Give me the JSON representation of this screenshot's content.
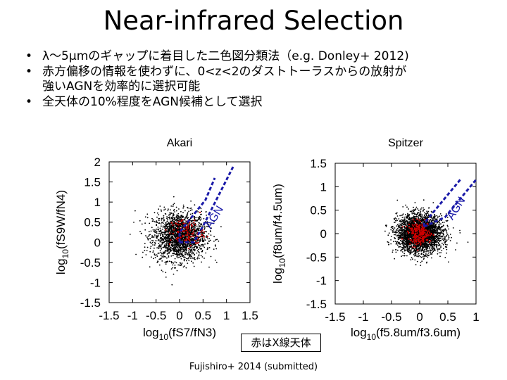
{
  "title": "Near-infrared Selection",
  "bullets": [
    {
      "text": "λ〜5µmのギャップに着目した二色図分類法（e.g. Donley+ 2012)"
    },
    {
      "text": "赤方偏移の情報を使わずに、0<z<2のダストトーラスからの放射が",
      "cont": "強いAGNを効率的に選択可能"
    },
    {
      "text": "全天体の10%程度をAGN候補として選択"
    }
  ],
  "caption": "赤はX線天体",
  "citation": "Fujishiro+ 2014 (submitted)",
  "colors": {
    "agn_line": "#1a1aa8",
    "xray": "#cc0000",
    "points": "#000000"
  },
  "chart_data": [
    {
      "type": "scatter",
      "title": "Akari",
      "xlabel": "log10(fS7/fN3)",
      "ylabel": "log10(fS9W/fN4)",
      "xlim": [
        -1.5,
        1.5
      ],
      "ylim": [
        -1.5,
        2
      ],
      "xticks": [
        "-1.5",
        "-1",
        "-0.5",
        "0",
        "0.5",
        "1",
        "1.5"
      ],
      "yticks": [
        "-1.5",
        "-1",
        "-0.5",
        "0",
        "0.5",
        "1",
        "1.5",
        "2"
      ],
      "region_label": "AGN",
      "region_boundary": [
        [
          0,
          0
        ],
        [
          0.3,
          0
        ],
        [
          0.5,
          0.4
        ],
        [
          1.15,
          1.9
        ]
      ],
      "region_boundary2": [
        [
          0,
          0
        ],
        [
          0,
          0.25
        ],
        [
          0.55,
          1.05
        ],
        [
          0.75,
          1.6
        ]
      ],
      "series": [
        {
          "center": [
            0,
            0.15
          ],
          "spread": [
            0.28,
            0.3
          ],
          "count": 2000
        },
        {
          "center": [
            0.15,
            0.25
          ],
          "spread": [
            0.18,
            0.18
          ],
          "count": 110
        }
      ]
    },
    {
      "type": "scatter",
      "title": "Spitzer",
      "xlabel": "log10(f5.8um/f3.6um)",
      "ylabel": "log10(f8um/f4.5um)",
      "xlim": [
        -1.5,
        1
      ],
      "ylim": [
        -1.5,
        1.5
      ],
      "xticks": [
        "-1.5",
        "-1",
        "-0.5",
        "0",
        "0.5",
        "1"
      ],
      "yticks": [
        "-1.5",
        "-1",
        "-0.5",
        "0",
        "0.5",
        "1",
        "1.5"
      ],
      "region_label": "AGN",
      "region_boundary": [
        [
          0.08,
          0.15
        ],
        [
          0.45,
          0.35
        ],
        [
          1.0,
          1.15
        ]
      ],
      "region_boundary2": [
        [
          0.08,
          0.15
        ],
        [
          0.08,
          0.22
        ],
        [
          0.72,
          1.15
        ]
      ],
      "series": [
        {
          "center": [
            0,
            0
          ],
          "spread": [
            0.2,
            0.2
          ],
          "count": 3000
        },
        {
          "center": [
            0,
            0
          ],
          "spread": [
            0.1,
            0.12
          ],
          "count": 220
        }
      ]
    }
  ]
}
